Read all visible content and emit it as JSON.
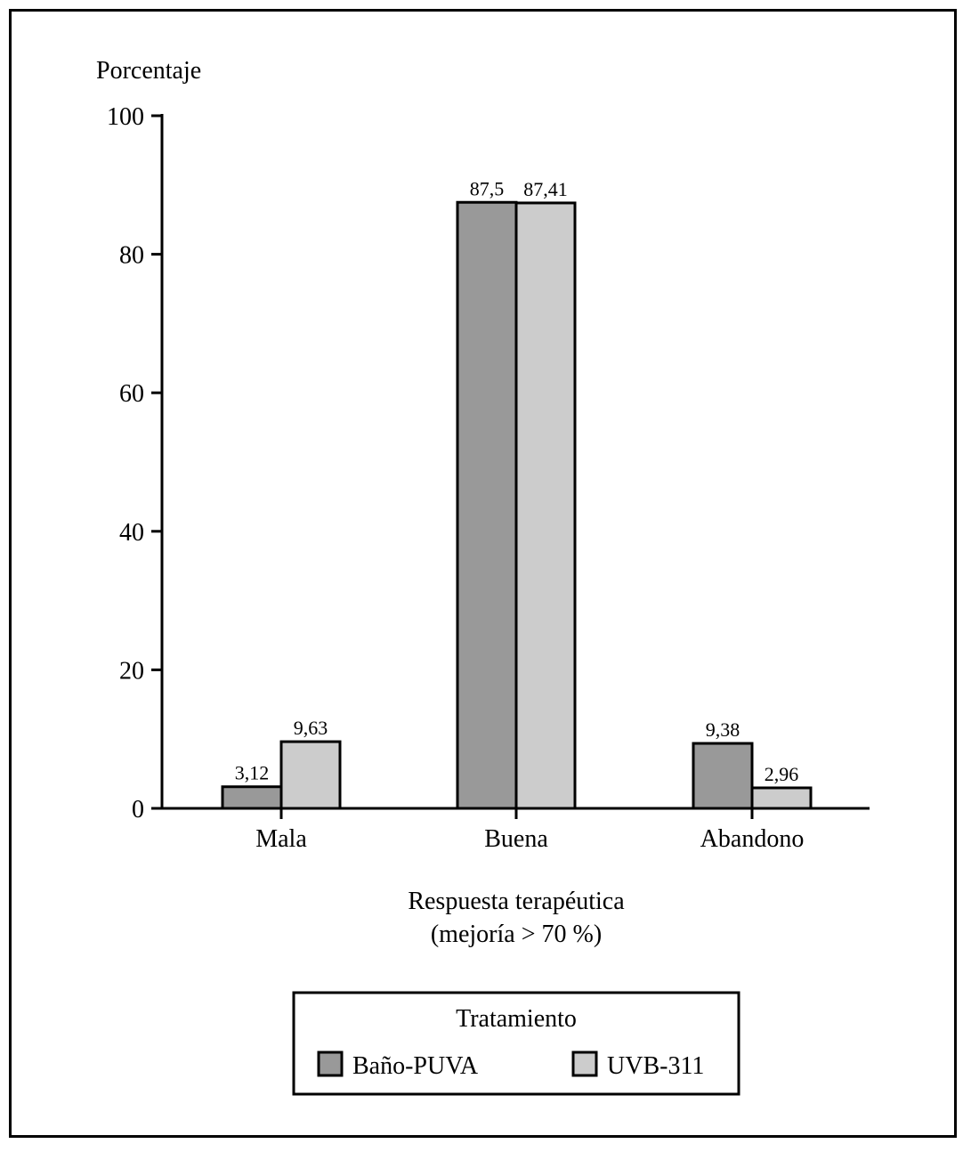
{
  "chart_data": {
    "type": "bar",
    "ylabel": "Porcentaje",
    "xlabel_line1": "Respuesta terapéutica",
    "xlabel_line2": "(mejoría > 70 %)",
    "categories": [
      "Mala",
      "Buena",
      "Abandono"
    ],
    "series": [
      {
        "name": "Baño-PUVA",
        "color": "#999999",
        "values": [
          3.12,
          87.5,
          9.38
        ],
        "labels": [
          "3,12",
          "87,5",
          "9,38"
        ]
      },
      {
        "name": "UVB-311",
        "color": "#cccccc",
        "values": [
          9.63,
          87.41,
          2.96
        ],
        "labels": [
          "9,63",
          "87,41",
          "2,96"
        ]
      }
    ],
    "ylim": [
      0,
      100
    ],
    "yticks": [
      0,
      20,
      40,
      60,
      80,
      100
    ],
    "ytick_labels": [
      "0",
      "20",
      "40",
      "60",
      "80",
      "100"
    ],
    "grid": false,
    "legend": {
      "title": "Tratamiento",
      "placement": "bottom-center"
    }
  }
}
